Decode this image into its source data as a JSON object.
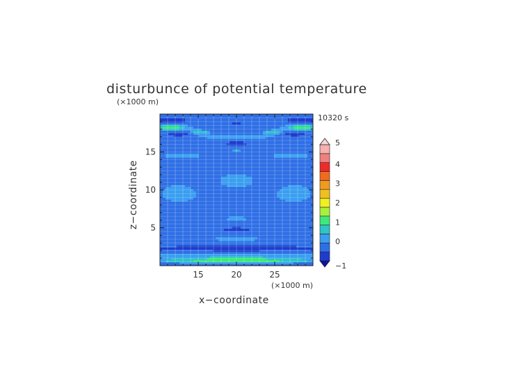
{
  "chart_data": {
    "type": "heatmap",
    "title": "disturbunce of potential temperature",
    "time_label": "10320 s",
    "xlabel": "x−coordinate",
    "ylabel": "z−coordinate",
    "x_unit": "(×1000 m)",
    "y_unit": "(×1000 m)",
    "xlim": [
      10,
      30
    ],
    "ylim": [
      0,
      20
    ],
    "x_ticks": [
      15,
      20,
      25
    ],
    "y_ticks": [
      5,
      10,
      15
    ],
    "grid": true,
    "colorbar": {
      "ticks": [
        5,
        4,
        3,
        2,
        1,
        0,
        -1
      ],
      "levels": [
        -1,
        -0.5,
        0,
        0.5,
        1,
        1.5,
        2,
        2.5,
        3,
        3.5,
        4,
        4.5,
        5
      ],
      "colors": [
        "#1e3ccc",
        "#2f6fe6",
        "#3a9ef0",
        "#2ec4c8",
        "#3ee87a",
        "#a8f03c",
        "#f0f020",
        "#f0c020",
        "#f09a20",
        "#f06a20",
        "#f02a2a",
        "#f08080",
        "#f5b0b0"
      ],
      "under_color": "#1010b0",
      "over_color": "#f8d8d8"
    },
    "background_value": -0.25,
    "features": [
      {
        "x": 20,
        "z": 0.7,
        "value": 1.6,
        "rx": 12,
        "rz": 0.35
      },
      {
        "x": 20,
        "z": 1.3,
        "value": 0.6,
        "rx": 12,
        "rz": 0.3
      },
      {
        "x": 20,
        "z": 2.3,
        "value": -0.9,
        "rx": 12,
        "rz": 0.4
      },
      {
        "x": 20,
        "z": 4.8,
        "value": -0.85,
        "rx": 2.2,
        "rz": 0.25
      },
      {
        "x": 20,
        "z": 3.5,
        "value": 0.4,
        "rx": 3.5,
        "rz": 0.3
      },
      {
        "x": 20,
        "z": 6.2,
        "value": 0.5,
        "rx": 1.5,
        "rz": 0.25
      },
      {
        "x": 20,
        "z": 15.2,
        "value": 0.6,
        "rx": 0.6,
        "rz": 0.2
      },
      {
        "x": 20,
        "z": 16.1,
        "value": -0.8,
        "rx": 1.6,
        "rz": 0.3
      },
      {
        "x": 20,
        "z": 18.8,
        "value": -0.85,
        "rx": 0.9,
        "rz": 0.25
      },
      {
        "x": 11.5,
        "z": 18.2,
        "value": 1.5,
        "rx": 2.2,
        "rz": 0.45
      },
      {
        "x": 28.5,
        "z": 18.2,
        "value": 1.5,
        "rx": 2.2,
        "rz": 0.45
      },
      {
        "x": 15.3,
        "z": 17.6,
        "value": 1.0,
        "rx": 1.3,
        "rz": 0.3
      },
      {
        "x": 24.7,
        "z": 17.6,
        "value": 1.0,
        "rx": 1.3,
        "rz": 0.3
      },
      {
        "x": 12.5,
        "z": 17.3,
        "value": -0.9,
        "rx": 1.8,
        "rz": 0.3
      },
      {
        "x": 27.5,
        "z": 17.3,
        "value": -0.9,
        "rx": 1.8,
        "rz": 0.3
      },
      {
        "x": 11.5,
        "z": 19.2,
        "value": -0.85,
        "rx": 2.5,
        "rz": 0.35
      },
      {
        "x": 28.5,
        "z": 19.2,
        "value": -0.85,
        "rx": 2.5,
        "rz": 0.35
      },
      {
        "x": 20,
        "z": 17.0,
        "value": 0.4,
        "rx": 6,
        "rz": 0.3
      },
      {
        "x": 13,
        "z": 14.5,
        "value": 0.35,
        "rx": 3,
        "rz": 0.35
      },
      {
        "x": 27,
        "z": 14.5,
        "value": 0.35,
        "rx": 3,
        "rz": 0.35
      },
      {
        "x": 20,
        "z": 11.2,
        "value": 0.25,
        "rx": 3,
        "rz": 1.2
      },
      {
        "x": 12.5,
        "z": 9.5,
        "value": 0.25,
        "rx": 3,
        "rz": 1.5
      },
      {
        "x": 27.5,
        "z": 9.5,
        "value": 0.25,
        "rx": 3,
        "rz": 1.5
      }
    ]
  }
}
